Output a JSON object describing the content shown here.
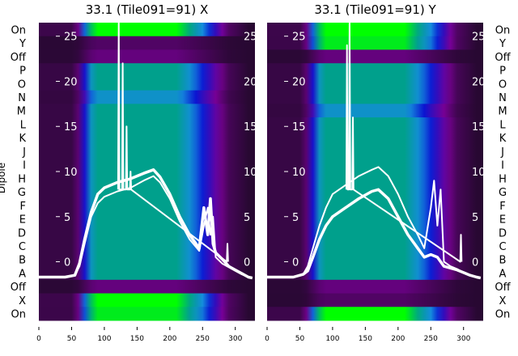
{
  "chart_data": [
    {
      "type": "heatmap",
      "title": "33.1 (Tile091=91) X",
      "ylabel": "Dipole",
      "rows": [
        "On",
        "Y",
        "Off",
        "P",
        "O",
        "N",
        "M",
        "L",
        "K",
        "J",
        "I",
        "H",
        "G",
        "F",
        "E",
        "D",
        "C",
        "B",
        "A",
        "Off",
        "X",
        "On"
      ],
      "row_levels": [
        1.0,
        0.1,
        0.15,
        0.75,
        0.75,
        0.6,
        0.75,
        0.75,
        0.75,
        0.75,
        0.75,
        0.75,
        0.75,
        0.75,
        0.75,
        0.75,
        0.75,
        0.75,
        0.75,
        0.15,
        1.0,
        0.95
      ],
      "xlim": [
        0,
        330
      ],
      "xticks": [
        0,
        50,
        100,
        150,
        200,
        250,
        300
      ],
      "inner_yticks": [
        0,
        5,
        10,
        15,
        20,
        25
      ],
      "inner_ylim": [
        -6.5,
        26.5
      ],
      "series": [
        {
          "name": "line-1",
          "x": [
            0,
            40,
            55,
            62,
            70,
            80,
            90,
            100,
            120,
            140,
            160,
            175,
            185,
            200,
            215,
            230,
            245,
            252,
            258,
            262,
            266,
            270,
            280,
            290,
            300,
            310,
            320,
            326
          ],
          "y": [
            -1.7,
            -1.7,
            -1.5,
            -0.5,
            2,
            5,
            6.5,
            7.2,
            7.8,
            8.2,
            9,
            9.5,
            8.8,
            7,
            4.5,
            2.5,
            1.2,
            4,
            6,
            3,
            5,
            0.5,
            -0.2,
            -0.6,
            -1,
            -1.4,
            -1.7,
            -1.8
          ]
        },
        {
          "name": "line-2",
          "x": [
            0,
            40,
            55,
            62,
            70,
            80,
            90,
            100,
            120,
            140,
            160,
            175,
            185,
            200,
            215,
            230,
            245,
            252,
            258,
            262,
            266,
            270,
            280,
            290,
            300,
            310,
            320,
            326
          ],
          "y": [
            -1.7,
            -1.7,
            -1.5,
            -0.2,
            2.5,
            5.5,
            7.5,
            8.2,
            8.8,
            9.2,
            9.8,
            10.2,
            9.4,
            7.5,
            5,
            3,
            1.5,
            6,
            3,
            7,
            2,
            1,
            0.3,
            -0.5,
            -0.9,
            -1.3,
            -1.7,
            -1.8
          ]
        },
        {
          "name": "spikes",
          "x": [
            121,
            122,
            123,
            127,
            128,
            129,
            133,
            134,
            135,
            139,
            140,
            141,
            287,
            288,
            289
          ],
          "y": [
            8,
            27,
            8,
            8,
            22,
            8,
            8,
            15,
            8,
            8,
            10,
            8,
            0,
            2,
            0
          ]
        }
      ]
    },
    {
      "type": "heatmap",
      "title": "33.1 (Tile091=91) Y",
      "rows": [
        "On",
        "Y",
        "Off",
        "P",
        "O",
        "N",
        "M",
        "L",
        "K",
        "J",
        "I",
        "H",
        "G",
        "F",
        "E",
        "D",
        "C",
        "B",
        "A",
        "Off",
        "X",
        "On"
      ],
      "row_levels": [
        1.0,
        0.95,
        0.15,
        0.75,
        0.75,
        0.75,
        0.6,
        0.75,
        0.75,
        0.75,
        0.75,
        0.75,
        0.75,
        0.75,
        0.75,
        0.75,
        0.75,
        0.75,
        0.75,
        0.15,
        0.1,
        1.0
      ],
      "xlim": [
        0,
        330
      ],
      "xticks": [
        0,
        50,
        100,
        150,
        200,
        250,
        300
      ],
      "inner_yticks": [
        0,
        5,
        10,
        15,
        20,
        25
      ],
      "inner_ylim": [
        -6.5,
        26.5
      ],
      "series": [
        {
          "name": "line-1",
          "x": [
            0,
            40,
            55,
            62,
            70,
            80,
            90,
            100,
            120,
            140,
            160,
            170,
            185,
            200,
            215,
            230,
            240,
            250,
            255,
            260,
            265,
            270,
            280,
            290,
            300,
            310,
            320,
            326
          ],
          "y": [
            -1.7,
            -1.7,
            -1.4,
            -0.5,
            1.5,
            4,
            6,
            7.5,
            8.5,
            9.5,
            10.2,
            10.5,
            9.5,
            7.5,
            5,
            3,
            1.5,
            6,
            9,
            4,
            8,
            0,
            -0.5,
            -0.8,
            -1.2,
            -1.5,
            -1.7,
            -1.8
          ]
        },
        {
          "name": "line-2",
          "x": [
            0,
            40,
            55,
            62,
            70,
            80,
            90,
            100,
            120,
            140,
            160,
            170,
            185,
            200,
            215,
            230,
            240,
            250,
            260,
            270,
            280,
            290,
            300,
            310,
            320,
            326
          ],
          "y": [
            -1.7,
            -1.7,
            -1.4,
            -1,
            0.5,
            2.5,
            4,
            5,
            6,
            7,
            7.8,
            8,
            7,
            5,
            3,
            1.5,
            0.5,
            0.8,
            0.5,
            -0.5,
            -0.7,
            -0.9,
            -1.2,
            -1.5,
            -1.7,
            -1.8
          ]
        },
        {
          "name": "spikes",
          "x": [
            121,
            122,
            123,
            125,
            126,
            127,
            130,
            131,
            132,
            295,
            296,
            297
          ],
          "y": [
            8,
            24,
            8,
            8,
            27,
            8,
            8,
            16,
            8,
            0,
            3,
            0
          ]
        }
      ]
    }
  ]
}
